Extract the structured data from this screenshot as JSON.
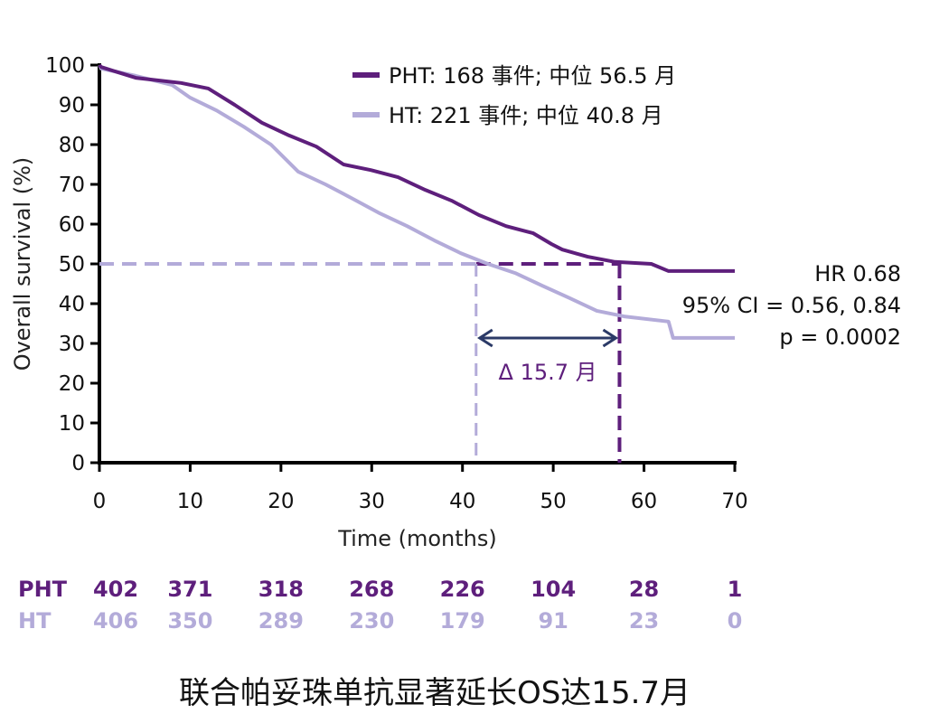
{
  "chart_data": {
    "type": "line",
    "ylabel": "Overall survival (%)",
    "xlabel": "Time (months)",
    "xlim": [
      0,
      70
    ],
    "ylim": [
      0,
      100
    ],
    "xticks": [
      0,
      10,
      20,
      30,
      40,
      50,
      60,
      70
    ],
    "yticks": [
      0,
      10,
      20,
      30,
      40,
      50,
      60,
      70,
      80,
      90,
      100
    ],
    "grid": false,
    "legend_placement": "top-right",
    "series": [
      {
        "name": "PHT",
        "legend": "PHT: 168 事件; 中位 56.5 月",
        "color": "#5e1f7c",
        "x": [
          0,
          0.2,
          4,
          9,
          12,
          14.9,
          17.9,
          20.9,
          23.9,
          26.9,
          29.9,
          32.9,
          35.9,
          38.8,
          41.8,
          44.8,
          47.8,
          49.8,
          51,
          53.8,
          56.8,
          60.8,
          62.7,
          70
        ],
        "y": [
          100,
          99.5,
          96.8,
          95.5,
          94.1,
          90,
          85.5,
          82.3,
          79.5,
          75,
          73.6,
          71.8,
          68.6,
          65.9,
          62.3,
          59.5,
          57.7,
          55,
          53.6,
          51.8,
          50.5,
          50,
          48.2,
          48.2
        ]
      },
      {
        "name": "HT",
        "legend": "HT:   221 事件; 中位 40.8 月",
        "color": "#b3abd9",
        "x": [
          0,
          0.2,
          4,
          8,
          10,
          12.9,
          15.9,
          18.9,
          21.9,
          24.9,
          27.9,
          30.9,
          33.9,
          36.9,
          39.8,
          42.8,
          45.8,
          48.8,
          51.8,
          54.8,
          57.8,
          62.7,
          63.2,
          70
        ],
        "y": [
          100,
          99.1,
          97.3,
          95,
          91.8,
          88.6,
          84.5,
          80,
          73.2,
          70,
          66.4,
          62.7,
          59.5,
          55.9,
          52.7,
          50,
          47.7,
          44.5,
          41.4,
          38.2,
          36.8,
          35.5,
          31.4,
          31.4
        ]
      }
    ],
    "median_reference": {
      "y": 50,
      "ht_x": 41.5,
      "pht_x": 57.3
    },
    "annotations": {
      "delta": "Δ 15.7 月",
      "stats": [
        "HR 0.68",
        "95% CI = 0.56, 0.84",
        "p = 0.0002"
      ]
    },
    "risk_table": {
      "times": [
        0,
        10,
        20,
        30,
        40,
        50,
        60,
        70
      ],
      "rows": [
        {
          "label": "PHT",
          "color": "#5e1f7c",
          "values": [
            "402",
            "371",
            "318",
            "268",
            "226",
            "104",
            "28",
            "1"
          ]
        },
        {
          "label": "HT",
          "color": "#b3abd9",
          "values": [
            "406",
            "350",
            "289",
            "230",
            "179",
            "91",
            "23",
            "0"
          ]
        }
      ]
    },
    "arrow_color": "#2b3a67"
  },
  "caption": "联合帕妥珠单抗显著延长OS达15.7月"
}
